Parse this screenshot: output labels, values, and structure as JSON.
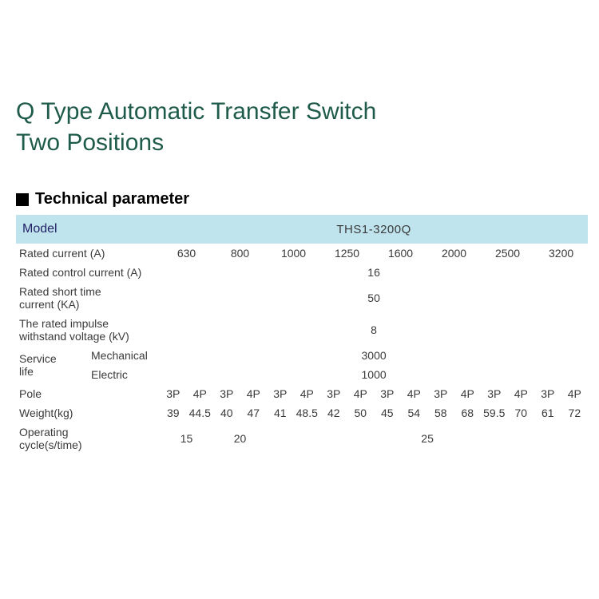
{
  "title": {
    "line1": "Q Type Automatic Transfer Switch",
    "line2": "Two Positions"
  },
  "section_heading": "Technical parameter",
  "colors": {
    "title_color": "#1f5b4a",
    "header_bg": "#c0e4ee",
    "text": "#3a3a3a",
    "marker": "#000000"
  },
  "model": {
    "label": "Model",
    "value": "THS1-3200Q"
  },
  "rated_current": {
    "label": "Rated current (A)",
    "values": [
      "630",
      "800",
      "1000",
      "1250",
      "1600",
      "2000",
      "2500",
      "3200"
    ]
  },
  "rated_control_current": {
    "label": "Rated control current (A)",
    "value": "16"
  },
  "rated_short_time_current": {
    "label": "Rated short time current (KA)",
    "value": "50"
  },
  "rated_impulse_voltage": {
    "label": "The rated impulse withstand voltage (kV)",
    "value": "8"
  },
  "service_life": {
    "group_label": "Service life",
    "mech_label": "Mechanical",
    "mech_value": "3000",
    "elec_label": "Electric",
    "elec_value": "1000"
  },
  "pole": {
    "label": "Pole",
    "values": [
      "3P",
      "4P",
      "3P",
      "4P",
      "3P",
      "4P",
      "3P",
      "4P",
      "3P",
      "4P",
      "3P",
      "4P",
      "3P",
      "4P",
      "3P",
      "4P"
    ]
  },
  "weight": {
    "label": "Weight(kg)",
    "values": [
      "39",
      "44.5",
      "40",
      "47",
      "41",
      "48.5",
      "42",
      "50",
      "45",
      "54",
      "58",
      "68",
      "59.5",
      "70",
      "61",
      "72"
    ]
  },
  "operating_cycle": {
    "label": "Operating cycle(s/time)",
    "segments": [
      {
        "span": 2,
        "value": "15"
      },
      {
        "span": 2,
        "value": "20"
      },
      {
        "span": 12,
        "value": "25"
      }
    ]
  }
}
